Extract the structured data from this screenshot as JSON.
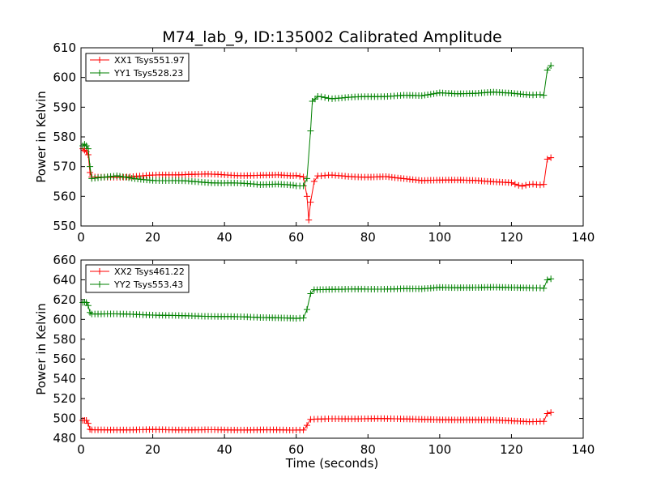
{
  "chart_data": [
    {
      "type": "line",
      "title": "M74_lab_9, ID:135002 Calibrated Amplitude",
      "xlabel": "",
      "ylabel": "Power in Kelvin",
      "xlim": [
        0,
        140
      ],
      "ylim": [
        550,
        610
      ],
      "xticks": [
        "0",
        "20",
        "40",
        "60",
        "80",
        "100",
        "120",
        "140"
      ],
      "yticks": [
        "550",
        "560",
        "570",
        "580",
        "590",
        "600",
        "610"
      ],
      "grid": false,
      "legend_position": "top-left",
      "series": [
        {
          "name": "XX1 Tsys551.97",
          "color": "#ff0000",
          "marker": "+",
          "points": [
            [
              0.5,
              576
            ],
            [
              1,
              575.5
            ],
            [
              1.5,
              575
            ],
            [
              2,
              574
            ],
            [
              2.5,
              568
            ],
            [
              3,
              566.5
            ],
            [
              10,
              566.5
            ],
            [
              20,
              567
            ],
            [
              30,
              567.5
            ],
            [
              40,
              567.2
            ],
            [
              50,
              567
            ],
            [
              55,
              567.3
            ],
            [
              60,
              567
            ],
            [
              62,
              566.5
            ],
            [
              63,
              560
            ],
            [
              63.5,
              552
            ],
            [
              64,
              558
            ],
            [
              65,
              565
            ],
            [
              66,
              567
            ],
            [
              70,
              567
            ],
            [
              80,
              566.5
            ],
            [
              85,
              566.8
            ],
            [
              90,
              566
            ],
            [
              95,
              565.2
            ],
            [
              100,
              565.3
            ],
            [
              105,
              565.5
            ],
            [
              110,
              565.5
            ],
            [
              115,
              565
            ],
            [
              120,
              564.5
            ],
            [
              123,
              563.5
            ],
            [
              126,
              564
            ],
            [
              129,
              564
            ],
            [
              130,
              572.5
            ],
            [
              131,
              573
            ]
          ]
        },
        {
          "name": "YY1 Tsys528.23",
          "color": "#008000",
          "marker": "+",
          "points": [
            [
              0.5,
              577
            ],
            [
              1,
              577.5
            ],
            [
              1.5,
              577
            ],
            [
              2,
              576
            ],
            [
              2.5,
              570
            ],
            [
              3,
              566
            ],
            [
              10,
              566.8
            ],
            [
              15,
              566
            ],
            [
              20,
              565.5
            ],
            [
              30,
              565
            ],
            [
              40,
              564.5
            ],
            [
              50,
              564
            ],
            [
              55,
              564
            ],
            [
              60,
              563.5
            ],
            [
              62,
              563.5
            ],
            [
              63,
              566
            ],
            [
              64,
              582
            ],
            [
              64.5,
              592
            ],
            [
              66,
              593.5
            ],
            [
              70,
              593
            ],
            [
              80,
              593.5
            ],
            [
              90,
              594
            ],
            [
              95,
              594
            ],
            [
              100,
              595
            ],
            [
              105,
              594.5
            ],
            [
              110,
              594.5
            ],
            [
              115,
              595
            ],
            [
              120,
              594.8
            ],
            [
              125,
              594.3
            ],
            [
              129,
              594
            ],
            [
              130,
              602.5
            ],
            [
              131,
              604
            ]
          ]
        }
      ]
    },
    {
      "type": "line",
      "title": "",
      "xlabel": "Time (seconds)",
      "ylabel": "Power in Kelvin",
      "xlim": [
        0,
        140
      ],
      "ylim": [
        480,
        660
      ],
      "xticks": [
        "0",
        "20",
        "40",
        "60",
        "80",
        "100",
        "120",
        "140"
      ],
      "yticks": [
        "480",
        "500",
        "520",
        "540",
        "560",
        "580",
        "600",
        "620",
        "640",
        "660"
      ],
      "grid": false,
      "legend_position": "top-left",
      "series": [
        {
          "name": "XX2 Tsys461.22",
          "color": "#ff0000",
          "marker": "+",
          "points": [
            [
              0.5,
              498
            ],
            [
              1,
              498
            ],
            [
              1.5,
              498
            ],
            [
              2,
              495
            ],
            [
              2.5,
              489
            ],
            [
              3,
              488.5
            ],
            [
              10,
              488.5
            ],
            [
              20,
              488.6
            ],
            [
              30,
              488.5
            ],
            [
              40,
              488.4
            ],
            [
              50,
              488.4
            ],
            [
              60,
              488.3
            ],
            [
              62,
              488.3
            ],
            [
              63,
              493
            ],
            [
              64,
              499
            ],
            [
              66,
              499.5
            ],
            [
              70,
              499.5
            ],
            [
              80,
              499.8
            ],
            [
              90,
              499.5
            ],
            [
              95,
              499
            ],
            [
              100,
              498.5
            ],
            [
              105,
              498.5
            ],
            [
              110,
              498.7
            ],
            [
              115,
              498.6
            ],
            [
              120,
              497.5
            ],
            [
              125,
              496.5
            ],
            [
              128,
              497
            ],
            [
              129,
              497
            ],
            [
              130,
              505
            ],
            [
              131,
              506
            ]
          ]
        },
        {
          "name": "YY2 Tsys553.43",
          "color": "#008000",
          "marker": "+",
          "points": [
            [
              0.5,
              617
            ],
            [
              1,
              617.5
            ],
            [
              1.5,
              617
            ],
            [
              2,
              614
            ],
            [
              2.5,
              607
            ],
            [
              3,
              605.5
            ],
            [
              10,
              605.5
            ],
            [
              20,
              604.5
            ],
            [
              30,
              603.5
            ],
            [
              40,
              603
            ],
            [
              50,
              602
            ],
            [
              55,
              601.5
            ],
            [
              60,
              601
            ],
            [
              62,
              601.5
            ],
            [
              63,
              610
            ],
            [
              64,
              626
            ],
            [
              65,
              630
            ],
            [
              70,
              630.5
            ],
            [
              80,
              630.5
            ],
            [
              90,
              631
            ],
            [
              95,
              631
            ],
            [
              100,
              632.5
            ],
            [
              105,
              632
            ],
            [
              110,
              632
            ],
            [
              115,
              632.5
            ],
            [
              120,
              632.3
            ],
            [
              125,
              632
            ],
            [
              129,
              631.5
            ],
            [
              130,
              640
            ],
            [
              131,
              641
            ]
          ]
        }
      ]
    }
  ]
}
